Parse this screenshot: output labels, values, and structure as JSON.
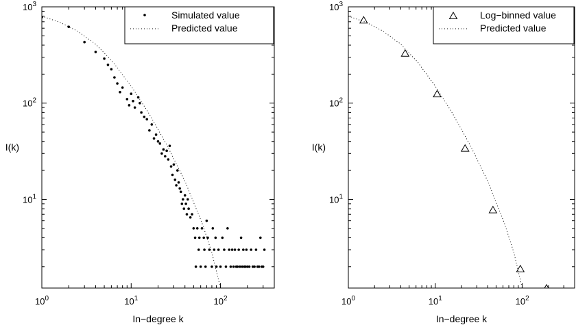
{
  "chart_data": [
    {
      "type": "scatter",
      "panel": "left",
      "xlabel": "In−degree k",
      "ylabel": "I(k)",
      "xscale": "log",
      "yscale": "log",
      "xlim": [
        1,
        400
      ],
      "ylim": [
        1.2,
        1000
      ],
      "xticks": [
        1,
        10,
        100
      ],
      "yticks": [
        10,
        100,
        1000
      ],
      "legend_position": "top-right",
      "series": [
        {
          "name": "Simulated value",
          "marker": "dot",
          "points": [
            [
              1,
              780
            ],
            [
              2,
              620
            ],
            [
              3,
              430
            ],
            [
              4,
              340
            ],
            [
              5,
              290
            ],
            [
              5.5,
              250
            ],
            [
              6,
              225
            ],
            [
              6.5,
              185
            ],
            [
              7,
              160
            ],
            [
              7.5,
              130
            ],
            [
              8,
              145
            ],
            [
              9,
              110
            ],
            [
              9.5,
              95
            ],
            [
              10,
              125
            ],
            [
              10.5,
              105
            ],
            [
              11,
              90
            ],
            [
              12,
              115
            ],
            [
              12.5,
              100
            ],
            [
              13,
              80
            ],
            [
              14,
              72
            ],
            [
              15,
              68
            ],
            [
              16,
              52
            ],
            [
              17,
              60
            ],
            [
              18,
              43
            ],
            [
              19,
              47
            ],
            [
              20,
              40
            ],
            [
              21,
              38
            ],
            [
              22,
              30
            ],
            [
              23,
              33
            ],
            [
              24,
              28
            ],
            [
              25,
              32
            ],
            [
              26,
              26
            ],
            [
              27,
              36
            ],
            [
              28,
              22
            ],
            [
              29,
              18
            ],
            [
              30,
              23
            ],
            [
              31,
              16
            ],
            [
              32,
              14
            ],
            [
              33,
              20
            ],
            [
              34,
              15
            ],
            [
              35,
              13
            ],
            [
              36,
              12
            ],
            [
              37,
              9
            ],
            [
              38,
              10
            ],
            [
              39,
              8
            ],
            [
              40,
              11
            ],
            [
              41,
              9
            ],
            [
              42,
              7
            ],
            [
              43,
              10
            ],
            [
              44,
              8
            ],
            [
              46,
              6.5
            ],
            [
              48,
              7
            ],
            [
              50,
              5
            ],
            [
              52,
              4
            ],
            [
              53,
              2
            ],
            [
              55,
              5
            ],
            [
              57,
              3
            ],
            [
              58,
              4
            ],
            [
              60,
              2
            ],
            [
              62,
              5
            ],
            [
              65,
              4
            ],
            [
              66,
              3
            ],
            [
              68,
              2
            ],
            [
              70,
              6
            ],
            [
              72,
              4
            ],
            [
              75,
              3
            ],
            [
              80,
              2
            ],
            [
              82,
              5
            ],
            [
              85,
              3
            ],
            [
              88,
              4
            ],
            [
              90,
              2
            ],
            [
              95,
              3
            ],
            [
              100,
              2
            ],
            [
              105,
              4
            ],
            [
              110,
              3
            ],
            [
              115,
              2
            ],
            [
              120,
              5
            ],
            [
              125,
              3
            ],
            [
              130,
              2
            ],
            [
              135,
              3
            ],
            [
              140,
              2
            ],
            [
              145,
              3
            ],
            [
              150,
              2
            ],
            [
              155,
              2
            ],
            [
              160,
              3
            ],
            [
              165,
              2
            ],
            [
              170,
              4
            ],
            [
              175,
              2
            ],
            [
              180,
              3
            ],
            [
              185,
              2
            ],
            [
              190,
              2
            ],
            [
              195,
              3
            ],
            [
              200,
              2
            ],
            [
              210,
              2
            ],
            [
              220,
              3
            ],
            [
              230,
              2
            ],
            [
              240,
              2
            ],
            [
              250,
              3
            ],
            [
              260,
              2
            ],
            [
              270,
              2
            ],
            [
              280,
              4
            ],
            [
              290,
              2
            ],
            [
              300,
              2
            ],
            [
              310,
              3
            ]
          ]
        },
        {
          "name": "Predicted value",
          "style": "dotted",
          "points": [
            [
              1,
              800
            ],
            [
              1.6,
              690
            ],
            [
              2.5,
              560
            ],
            [
              4,
              410
            ],
            [
              6.3,
              265
            ],
            [
              10,
              150
            ],
            [
              15.8,
              78
            ],
            [
              25,
              37
            ],
            [
              40,
              15.5
            ],
            [
              63,
              5.5
            ],
            [
              80,
              2.8
            ],
            [
              100,
              1.2
            ]
          ]
        }
      ]
    },
    {
      "type": "scatter",
      "panel": "right",
      "xlabel": "In−degree k",
      "ylabel": "I(k)",
      "xscale": "log",
      "yscale": "log",
      "xlim": [
        1,
        400
      ],
      "ylim": [
        1.2,
        1000
      ],
      "xticks": [
        1,
        10,
        100
      ],
      "yticks": [
        10,
        100,
        1000
      ],
      "legend_position": "top-right",
      "series": [
        {
          "name": "Log−binned value",
          "marker": "triangle",
          "points": [
            [
              1.5,
              730
            ],
            [
              4.5,
              330
            ],
            [
              10.5,
              125
            ],
            [
              22,
              34
            ],
            [
              46,
              7.8
            ],
            [
              95,
              1.9
            ],
            [
              190,
              1.2
            ]
          ]
        },
        {
          "name": "Predicted value",
          "style": "dotted",
          "points": [
            [
              1,
              800
            ],
            [
              1.6,
              690
            ],
            [
              2.5,
              560
            ],
            [
              4,
              410
            ],
            [
              6.3,
              265
            ],
            [
              10,
              150
            ],
            [
              15.8,
              78
            ],
            [
              25,
              37
            ],
            [
              40,
              15.5
            ],
            [
              63,
              5.5
            ],
            [
              80,
              2.8
            ],
            [
              100,
              1.2
            ]
          ]
        }
      ]
    }
  ]
}
